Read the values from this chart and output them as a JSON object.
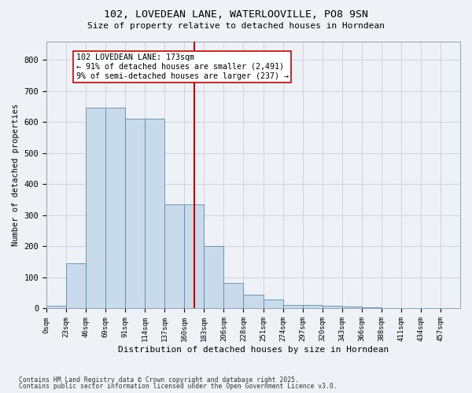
{
  "title": "102, LOVEDEAN LANE, WATERLOOVILLE, PO8 9SN",
  "subtitle": "Size of property relative to detached houses in Horndean",
  "xlabel": "Distribution of detached houses by size in Horndean",
  "ylabel": "Number of detached properties",
  "bar_color": "#c9daea",
  "bar_edge_color": "#5a8ab0",
  "grid_color": "#c8d0dc",
  "background_color": "#eef2f7",
  "bin_labels": [
    "0sqm",
    "23sqm",
    "46sqm",
    "69sqm",
    "91sqm",
    "114sqm",
    "137sqm",
    "160sqm",
    "183sqm",
    "206sqm",
    "228sqm",
    "251sqm",
    "274sqm",
    "297sqm",
    "320sqm",
    "343sqm",
    "366sqm",
    "388sqm",
    "411sqm",
    "434sqm",
    "457sqm"
  ],
  "bar_values": [
    8,
    145,
    645,
    645,
    610,
    610,
    335,
    335,
    200,
    83,
    45,
    28,
    12,
    12,
    8,
    5,
    3,
    0,
    0,
    0,
    2
  ],
  "ylim": [
    0,
    860
  ],
  "yticks": [
    0,
    100,
    200,
    300,
    400,
    500,
    600,
    700,
    800
  ],
  "vline_x": 7,
  "vline_color": "#cc0000",
  "annotation_title": "102 LOVEDEAN LANE: 173sqm",
  "annotation_line1": "← 91% of detached houses are smaller (2,491)",
  "annotation_line2": "9% of semi-detached houses are larger (237) →",
  "annotation_box_color": "#ffffff",
  "annotation_box_edge": "#cc0000",
  "footnote1": "Contains HM Land Registry data © Crown copyright and database right 2025.",
  "footnote2": "Contains public sector information licensed under the Open Government Licence v3.0.",
  "n_bins": 21
}
